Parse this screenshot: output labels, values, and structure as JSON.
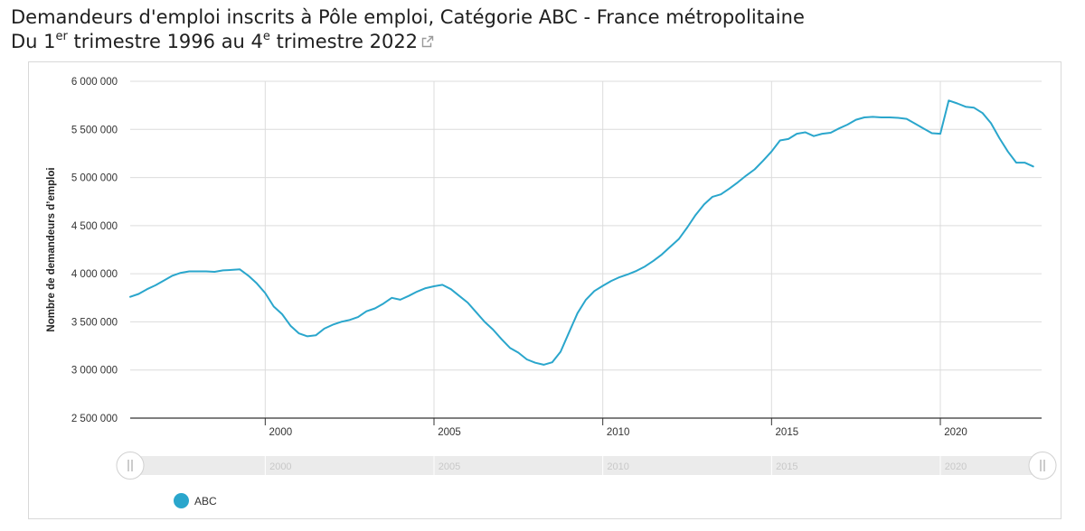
{
  "header": {
    "title_line1": "Demandeurs d'emploi inscrits à Pôle emploi, Catégorie ABC - France métropolitaine",
    "title_line2_a": "Du 1",
    "title_line2_sup1": "er",
    "title_line2_b": " trimestre 1996 au 4",
    "title_line2_sup2": "e",
    "title_line2_c": " trimestre 2022",
    "link_icon": "external-link-icon"
  },
  "legend": {
    "label": "ABC",
    "color": "#2aa6cc"
  },
  "colors": {
    "line": "#2aa6cc",
    "grid": "#dcdcdc",
    "axis": "#333333",
    "navigator_bg": "#ebebeb"
  },
  "chart_data": {
    "type": "line",
    "ylabel": "Nombre de demandeurs d’emploi",
    "xlabel": "",
    "ylim": [
      2500000,
      6000000
    ],
    "xlim": [
      1996.0,
      2023.0
    ],
    "y_ticks": [
      2500000,
      3000000,
      3500000,
      4000000,
      4500000,
      5000000,
      5500000,
      6000000
    ],
    "y_tick_labels": [
      "2 500 000",
      "3 000 000",
      "3 500 000",
      "4 000 000",
      "4 500 000",
      "5 000 000",
      "5 500 000",
      "6 000 000"
    ],
    "x_ticks": [
      2000,
      2005,
      2010,
      2015,
      2020
    ],
    "x_tick_labels": [
      "2000",
      "2005",
      "2010",
      "2015",
      "2020"
    ],
    "navigator_labels": [
      "2000",
      "2005",
      "2010",
      "2015",
      "2020"
    ],
    "grid": true,
    "legend_position": "bottom-left",
    "series": [
      {
        "name": "ABC",
        "x": [
          1996.0,
          1996.25,
          1996.5,
          1996.75,
          1997.0,
          1997.25,
          1997.5,
          1997.75,
          1998.0,
          1998.25,
          1998.5,
          1998.75,
          1999.0,
          1999.25,
          1999.5,
          1999.75,
          2000.0,
          2000.25,
          2000.5,
          2000.75,
          2001.0,
          2001.25,
          2001.5,
          2001.75,
          2002.0,
          2002.25,
          2002.5,
          2002.75,
          2003.0,
          2003.25,
          2003.5,
          2003.75,
          2004.0,
          2004.25,
          2004.5,
          2004.75,
          2005.0,
          2005.25,
          2005.5,
          2005.75,
          2006.0,
          2006.25,
          2006.5,
          2006.75,
          2007.0,
          2007.25,
          2007.5,
          2007.75,
          2008.0,
          2008.25,
          2008.5,
          2008.75,
          2009.0,
          2009.25,
          2009.5,
          2009.75,
          2010.0,
          2010.25,
          2010.5,
          2010.75,
          2011.0,
          2011.25,
          2011.5,
          2011.75,
          2012.0,
          2012.25,
          2012.5,
          2012.75,
          2013.0,
          2013.25,
          2013.5,
          2013.75,
          2014.0,
          2014.25,
          2014.5,
          2014.75,
          2015.0,
          2015.25,
          2015.5,
          2015.75,
          2016.0,
          2016.25,
          2016.5,
          2016.75,
          2017.0,
          2017.25,
          2017.5,
          2017.75,
          2018.0,
          2018.25,
          2018.5,
          2018.75,
          2019.0,
          2019.25,
          2019.5,
          2019.75,
          2020.0,
          2020.25,
          2020.5,
          2020.75,
          2021.0,
          2021.25,
          2021.5,
          2021.75,
          2022.0,
          2022.25,
          2022.5,
          2022.75
        ],
        "values": [
          3760000,
          3790000,
          3840000,
          3880000,
          3930000,
          3980000,
          4010000,
          4025000,
          4025000,
          4025000,
          4020000,
          4035000,
          4040000,
          4045000,
          3980000,
          3900000,
          3800000,
          3660000,
          3580000,
          3460000,
          3380000,
          3350000,
          3360000,
          3430000,
          3470000,
          3500000,
          3520000,
          3550000,
          3610000,
          3640000,
          3690000,
          3750000,
          3730000,
          3770000,
          3815000,
          3850000,
          3870000,
          3885000,
          3840000,
          3770000,
          3700000,
          3600000,
          3500000,
          3420000,
          3320000,
          3230000,
          3180000,
          3110000,
          3075000,
          3055000,
          3080000,
          3190000,
          3390000,
          3590000,
          3730000,
          3820000,
          3875000,
          3925000,
          3965000,
          3995000,
          4030000,
          4075000,
          4135000,
          4200000,
          4280000,
          4360000,
          4480000,
          4610000,
          4720000,
          4800000,
          4825000,
          4885000,
          4950000,
          5020000,
          5085000,
          5175000,
          5270000,
          5385000,
          5400000,
          5455000,
          5470000,
          5430000,
          5455000,
          5465000,
          5510000,
          5550000,
          5600000,
          5625000,
          5630000,
          5625000,
          5625000,
          5620000,
          5610000,
          5560000,
          5510000,
          5460000,
          5455000,
          5800000,
          5770000,
          5735000,
          5725000,
          5670000,
          5565000,
          5410000,
          5270000,
          5155000,
          5155000,
          5115000
        ]
      }
    ]
  }
}
